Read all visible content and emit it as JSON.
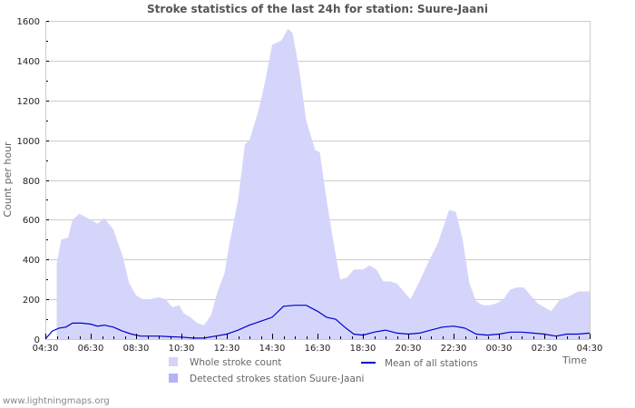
{
  "title": "Stroke statistics of the last 24h for station: Suure-Jaani",
  "footer": "www.lightningmaps.org",
  "legend": {
    "whole": "Whole stroke count",
    "detected": "Detected strokes station Suure-Jaani",
    "mean": "Mean of all stations"
  },
  "colors": {
    "whole": "#d5d5fb",
    "detected": "#b3b3f5",
    "mean": "#0000cc",
    "grid": "#cccccc"
  },
  "chart_data": {
    "type": "area",
    "title": "Stroke statistics of the last 24h for station: Suure-Jaani",
    "xlabel": "Time",
    "ylabel": "Count per hour",
    "ylim": [
      0,
      1600
    ],
    "yticks": [
      0,
      200,
      400,
      600,
      800,
      1000,
      1200,
      1400,
      1600
    ],
    "xticks": [
      "04:30",
      "06:30",
      "08:30",
      "10:30",
      "12:30",
      "14:30",
      "16:30",
      "18:30",
      "20:30",
      "22:30",
      "00:30",
      "02:30",
      "04:30"
    ],
    "x_unit": "hours since 04:30",
    "grid": true,
    "legend_position": "bottom",
    "series": [
      {
        "name": "Whole stroke count",
        "type": "area",
        "x": [
          0.5,
          0.7,
          1.0,
          1.2,
          1.5,
          2.0,
          2.3,
          2.6,
          3.0,
          3.4,
          3.7,
          4.0,
          4.3,
          4.6,
          5.0,
          5.3,
          5.6,
          5.9,
          6.1,
          6.4,
          6.7,
          7.0,
          7.3,
          7.6,
          7.9,
          8.1,
          8.5,
          8.8,
          9.0,
          9.4,
          9.7,
          10.0,
          10.4,
          10.7,
          10.9,
          11.2,
          11.5,
          11.9,
          12.1,
          12.4,
          12.7,
          13.0,
          13.3,
          13.6,
          14.0,
          14.3,
          14.6,
          14.9,
          15.2,
          15.5,
          15.8,
          16.1,
          16.5,
          16.9,
          17.3,
          17.6,
          17.8,
          18.1,
          18.4,
          18.7,
          19.0,
          19.3,
          19.6,
          19.9,
          20.2,
          20.5,
          20.8,
          21.1,
          21.4,
          21.7,
          22.0,
          22.3,
          22.7,
          23.0,
          23.5,
          24.0
        ],
        "values": [
          380,
          500,
          510,
          600,
          630,
          600,
          580,
          610,
          550,
          420,
          280,
          220,
          200,
          200,
          210,
          200,
          160,
          170,
          130,
          110,
          80,
          70,
          120,
          240,
          330,
          470,
          700,
          980,
          1000,
          1150,
          1300,
          1480,
          1500,
          1560,
          1540,
          1350,
          1100,
          950,
          940,
          700,
          490,
          300,
          310,
          350,
          350,
          370,
          350,
          290,
          290,
          280,
          240,
          200,
          290,
          390,
          480,
          580,
          650,
          640,
          500,
          280,
          190,
          170,
          170,
          180,
          200,
          250,
          260,
          260,
          220,
          180,
          160,
          140,
          200,
          210,
          240,
          240
        ]
      },
      {
        "name": "Detected strokes station Suure-Jaani",
        "type": "area",
        "x": [],
        "values": []
      },
      {
        "name": "Mean of all stations",
        "type": "line",
        "x": [
          0.0,
          0.3,
          0.6,
          0.9,
          1.2,
          1.6,
          2.0,
          2.3,
          2.6,
          3.0,
          3.4,
          3.8,
          4.2,
          5.0,
          5.5,
          6.0,
          6.5,
          7.0,
          7.5,
          8.0,
          8.5,
          9.0,
          9.5,
          10.0,
          10.5,
          11.0,
          11.5,
          12.0,
          12.4,
          12.8,
          13.2,
          13.6,
          14.0,
          14.5,
          15.0,
          15.5,
          16.0,
          16.5,
          17.0,
          17.5,
          18.0,
          18.5,
          19.0,
          19.5,
          20.0,
          20.5,
          21.0,
          21.5,
          22.0,
          22.5,
          23.0,
          23.5,
          24.0
        ],
        "values": [
          0,
          40,
          55,
          60,
          80,
          80,
          75,
          65,
          70,
          60,
          40,
          25,
          15,
          15,
          12,
          10,
          5,
          5,
          15,
          25,
          45,
          70,
          90,
          110,
          165,
          170,
          170,
          140,
          110,
          100,
          60,
          25,
          20,
          35,
          45,
          30,
          25,
          30,
          45,
          60,
          65,
          55,
          25,
          20,
          25,
          35,
          35,
          30,
          25,
          15,
          25,
          25,
          30
        ]
      }
    ]
  }
}
